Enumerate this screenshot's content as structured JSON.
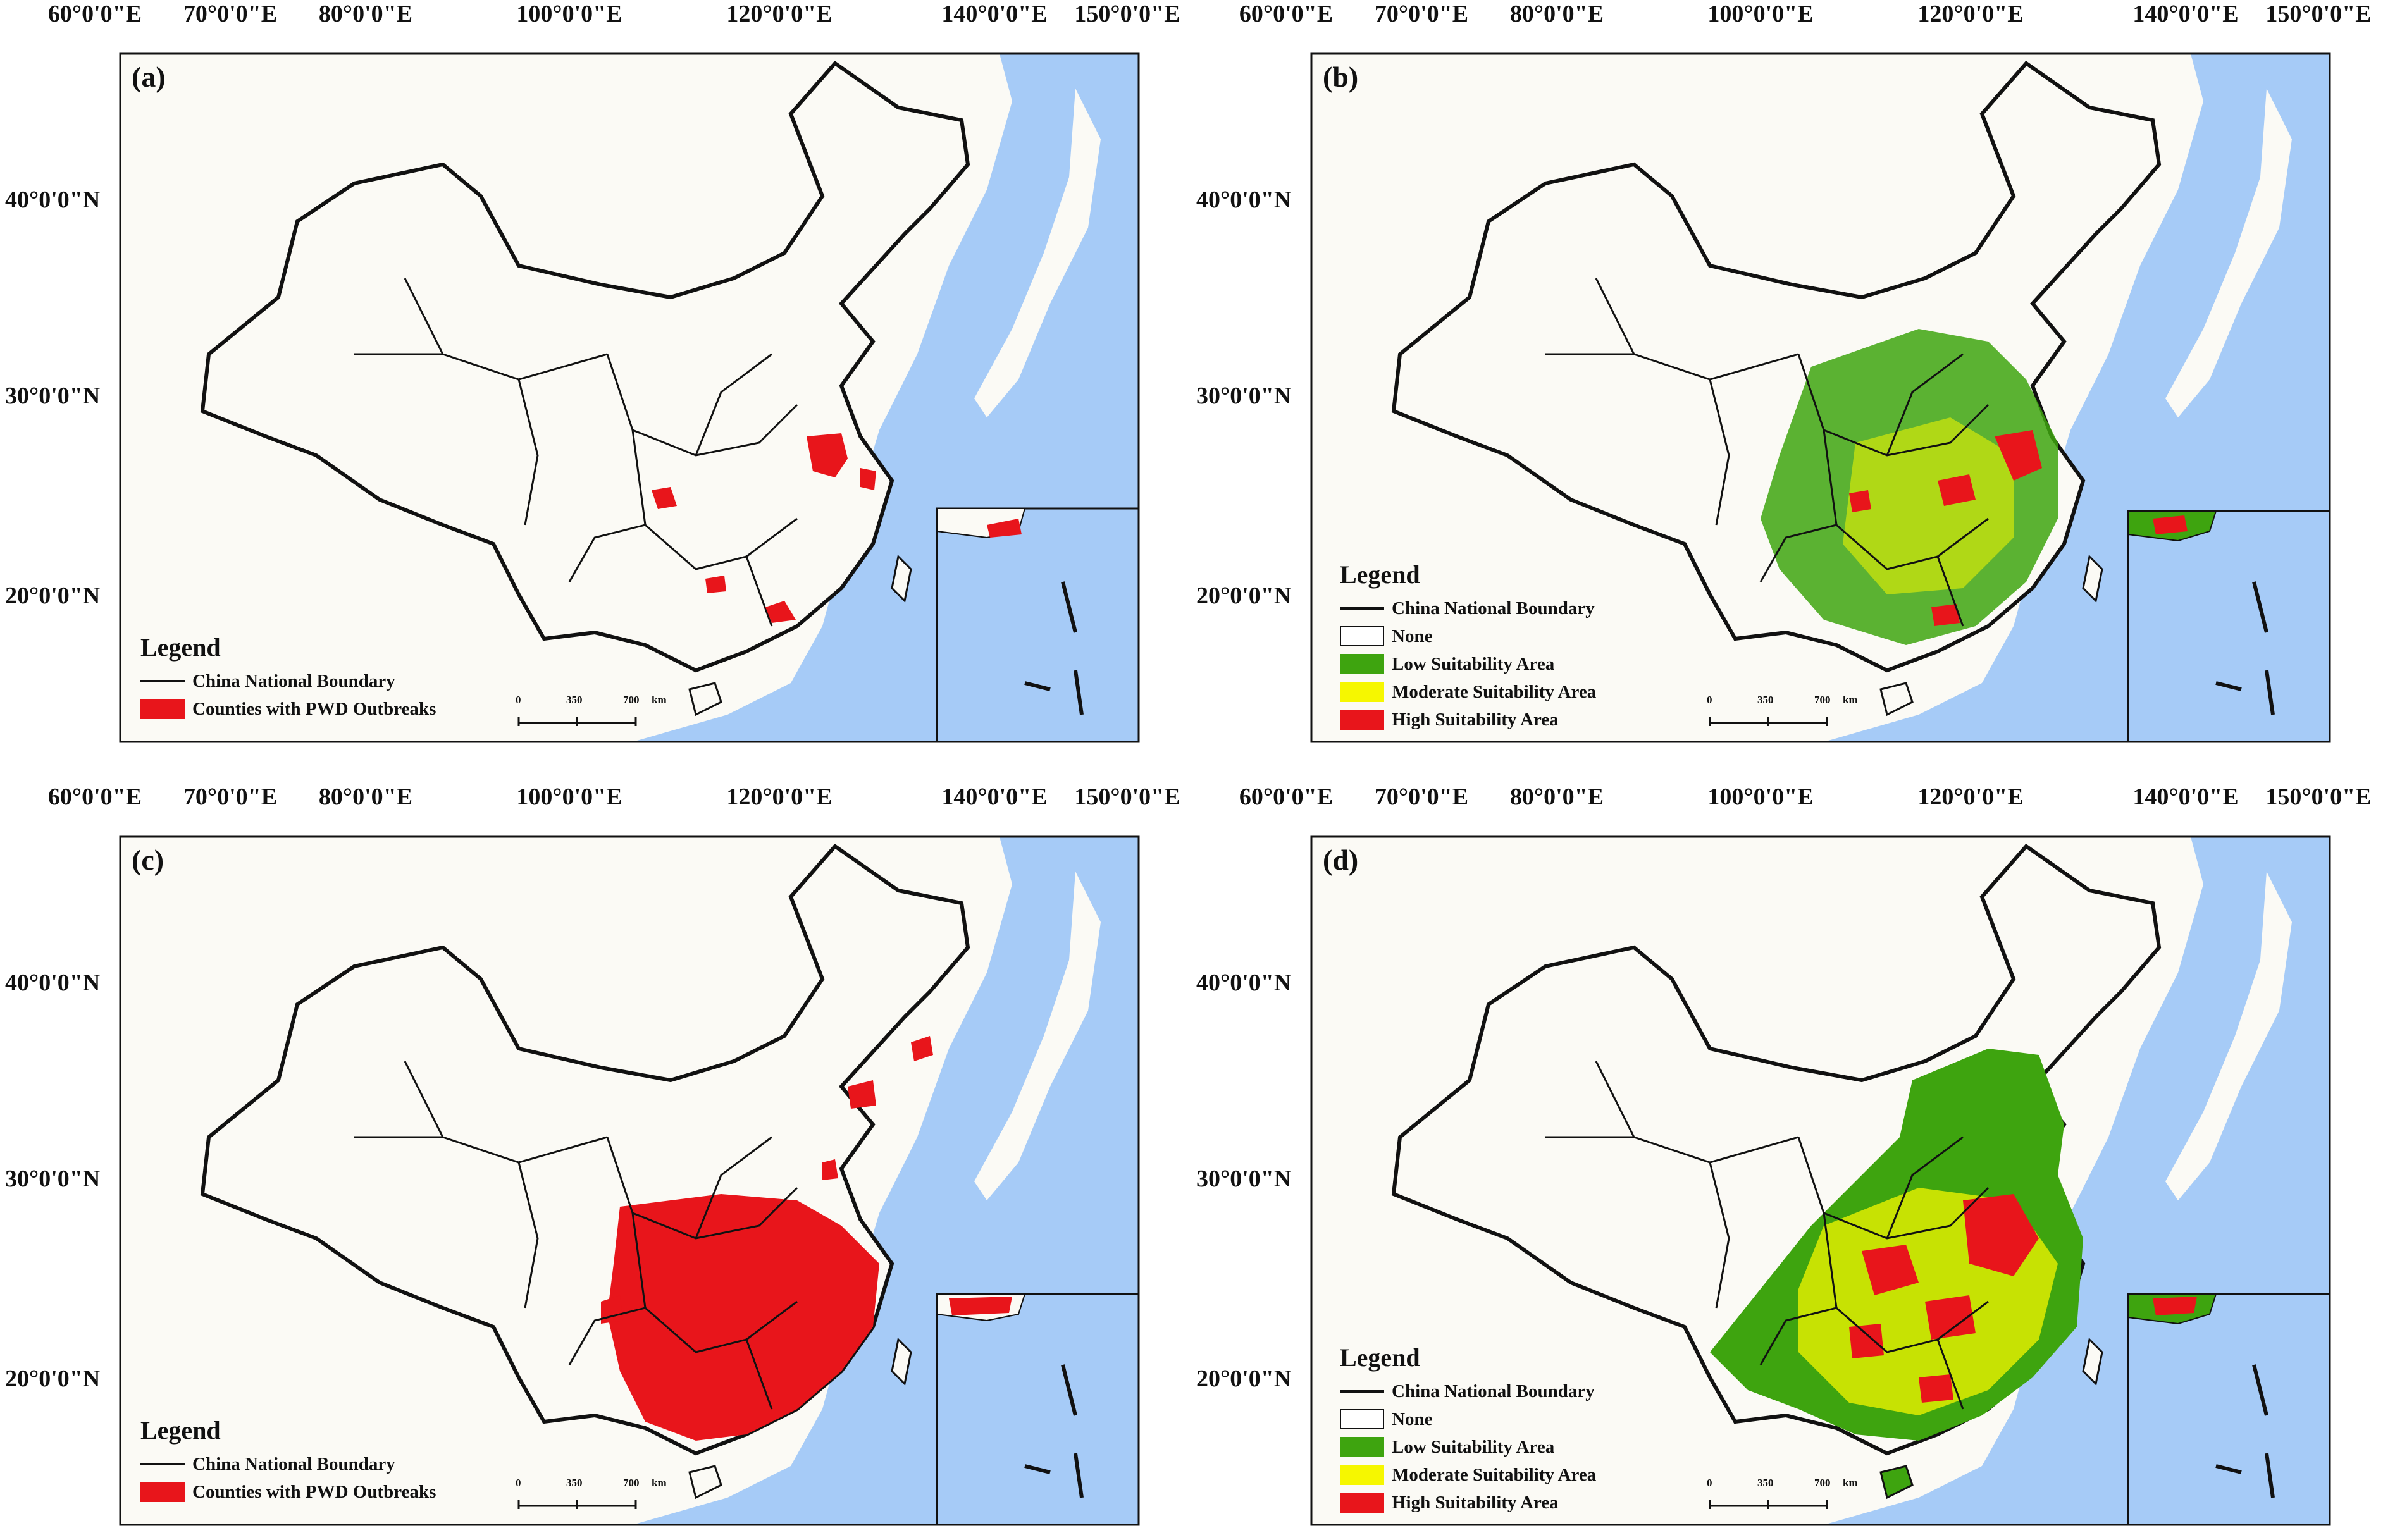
{
  "axes": {
    "lon_labels": [
      "60°0'0\"E",
      "70°0'0\"E",
      "80°0'0\"E",
      "100°0'0\"E",
      "120°0'0\"E",
      "140°0'0\"E",
      "150°0'0\"E"
    ],
    "lat_labels": [
      "40°0'0\"N",
      "30°0'0\"N",
      "20°0'0\"N"
    ]
  },
  "colors": {
    "ocean": "#a6cbf7",
    "land": "#fbfaf5",
    "boundary": "#111111",
    "outbreak": "#e8151b",
    "low": "#3ea40f",
    "moderate": "#f6f700",
    "high": "#e8151b"
  },
  "legend": {
    "title": "Legend",
    "boundary": "China National Boundary",
    "outbreaks": "Counties with PWD Outbreaks",
    "none": "None",
    "low": "Low Suitability Area",
    "moderate": "Moderate Suitability Area",
    "high": "High Suitability Area"
  },
  "scalebar": {
    "ticks": [
      "0",
      "350",
      "700"
    ],
    "unit": "km"
  },
  "panels": [
    {
      "label": "(a)",
      "type": "outbreaks"
    },
    {
      "label": "(b)",
      "type": "suitability"
    },
    {
      "label": "(c)",
      "type": "outbreaks"
    },
    {
      "label": "(d)",
      "type": "suitability"
    }
  ]
}
